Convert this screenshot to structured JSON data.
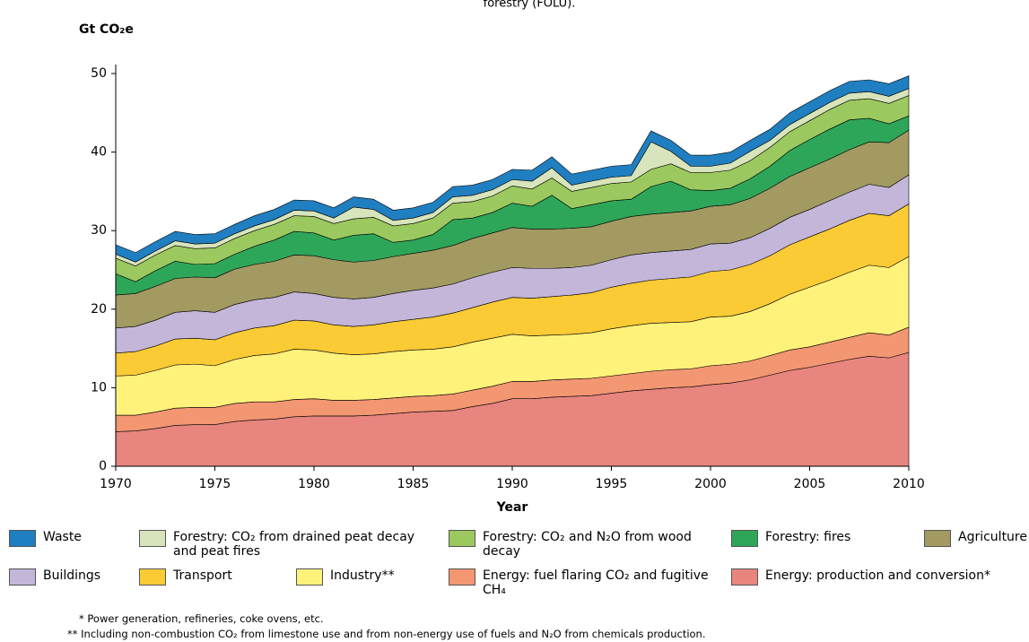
{
  "chart_data": {
    "type": "stacked_area",
    "title": "forestry (FOLU).",
    "ylabel": "Gt CO₂e",
    "xlabel": "Year",
    "x": [
      1970,
      1971,
      1972,
      1973,
      1974,
      1975,
      1976,
      1977,
      1978,
      1979,
      1980,
      1981,
      1982,
      1983,
      1984,
      1985,
      1986,
      1987,
      1988,
      1989,
      1990,
      1991,
      1992,
      1993,
      1994,
      1995,
      1996,
      1997,
      1998,
      1999,
      2000,
      2001,
      2002,
      2003,
      2004,
      2005,
      2006,
      2007,
      2008,
      2009,
      2010
    ],
    "xlim": [
      1970,
      2010
    ],
    "xticks": [
      1970,
      1975,
      1980,
      1985,
      1990,
      1995,
      2000,
      2005,
      2010
    ],
    "ylim": [
      0,
      55
    ],
    "yticks": [
      0,
      10,
      20,
      30,
      40,
      50
    ],
    "series": [
      {
        "name": "Energy: production and conversion*",
        "color": "#e8857f",
        "values": [
          4.4,
          4.5,
          4.8,
          5.2,
          5.3,
          5.3,
          5.7,
          5.9,
          6.0,
          6.3,
          6.4,
          6.4,
          6.4,
          6.5,
          6.7,
          6.9,
          7.0,
          7.1,
          7.6,
          8.0,
          8.6,
          8.6,
          8.8,
          8.9,
          9.0,
          9.3,
          9.6,
          9.8,
          10.0,
          10.1,
          10.4,
          10.6,
          11.0,
          11.6,
          12.2,
          12.6,
          13.1,
          13.6,
          14.0,
          13.8,
          14.5
        ]
      },
      {
        "name": "Energy: fuel flaring CO₂ and fugitive CH₄",
        "color": "#f39672",
        "values": [
          2.1,
          2.0,
          2.1,
          2.2,
          2.2,
          2.2,
          2.3,
          2.3,
          2.2,
          2.2,
          2.2,
          2.0,
          2.0,
          2.0,
          2.0,
          2.0,
          2.0,
          2.1,
          2.1,
          2.2,
          2.2,
          2.2,
          2.2,
          2.2,
          2.2,
          2.2,
          2.2,
          2.3,
          2.3,
          2.3,
          2.4,
          2.4,
          2.4,
          2.5,
          2.6,
          2.6,
          2.7,
          2.8,
          3.0,
          2.9,
          3.2
        ]
      },
      {
        "name": "Industry**",
        "color": "#fff27a",
        "values": [
          5.0,
          5.1,
          5.3,
          5.5,
          5.5,
          5.3,
          5.6,
          5.9,
          6.1,
          6.4,
          6.2,
          6.0,
          5.8,
          5.8,
          5.9,
          5.9,
          5.9,
          6.0,
          6.1,
          6.1,
          6.0,
          5.8,
          5.7,
          5.7,
          5.8,
          6.0,
          6.1,
          6.1,
          6.0,
          6.0,
          6.2,
          6.1,
          6.3,
          6.6,
          7.1,
          7.6,
          7.9,
          8.3,
          8.6,
          8.6,
          9.0
        ]
      },
      {
        "name": "Transport",
        "color": "#fbcb35",
        "values": [
          2.9,
          3.0,
          3.1,
          3.3,
          3.3,
          3.3,
          3.4,
          3.5,
          3.6,
          3.7,
          3.7,
          3.6,
          3.6,
          3.7,
          3.8,
          3.9,
          4.1,
          4.3,
          4.4,
          4.6,
          4.7,
          4.8,
          4.9,
          5.0,
          5.1,
          5.3,
          5.4,
          5.5,
          5.6,
          5.7,
          5.8,
          5.9,
          6.0,
          6.1,
          6.3,
          6.4,
          6.5,
          6.6,
          6.6,
          6.6,
          6.7
        ]
      },
      {
        "name": "Buildings",
        "color": "#c3b6d9",
        "values": [
          3.2,
          3.2,
          3.3,
          3.4,
          3.5,
          3.5,
          3.6,
          3.6,
          3.6,
          3.6,
          3.5,
          3.5,
          3.5,
          3.5,
          3.6,
          3.7,
          3.7,
          3.7,
          3.8,
          3.8,
          3.8,
          3.8,
          3.6,
          3.5,
          3.5,
          3.5,
          3.6,
          3.5,
          3.5,
          3.5,
          3.5,
          3.4,
          3.4,
          3.5,
          3.5,
          3.5,
          3.6,
          3.6,
          3.7,
          3.6,
          3.7
        ]
      },
      {
        "name": "Agriculture",
        "color": "#a39a62",
        "values": [
          4.2,
          4.2,
          4.3,
          4.3,
          4.3,
          4.4,
          4.5,
          4.5,
          4.6,
          4.7,
          4.8,
          4.8,
          4.7,
          4.7,
          4.7,
          4.7,
          4.8,
          4.9,
          5.0,
          5.0,
          5.1,
          5.0,
          5.0,
          5.0,
          4.9,
          4.9,
          4.9,
          4.9,
          4.9,
          4.9,
          4.8,
          4.9,
          5.0,
          5.1,
          5.2,
          5.3,
          5.3,
          5.4,
          5.4,
          5.7,
          5.7
        ]
      },
      {
        "name": "Forestry: fires",
        "color": "#2ea65a",
        "values": [
          2.7,
          1.5,
          2.0,
          2.2,
          1.6,
          1.8,
          1.9,
          2.3,
          2.7,
          3.0,
          2.9,
          2.5,
          3.4,
          3.4,
          1.8,
          1.7,
          2.0,
          3.3,
          2.6,
          2.6,
          3.1,
          2.9,
          4.3,
          2.5,
          2.8,
          2.6,
          2.2,
          3.5,
          4.0,
          2.7,
          2.0,
          2.1,
          2.5,
          2.8,
          3.3,
          3.6,
          3.8,
          3.8,
          3.0,
          2.4,
          1.8
        ]
      },
      {
        "name": "Forestry: CO₂ and N₂O from wood decay",
        "color": "#9bc95f",
        "values": [
          2.0,
          2.0,
          2.0,
          2.0,
          2.0,
          2.0,
          2.0,
          2.0,
          2.0,
          2.0,
          2.1,
          2.1,
          2.1,
          2.1,
          2.1,
          2.1,
          2.1,
          2.1,
          2.1,
          2.1,
          2.2,
          2.2,
          2.2,
          2.2,
          2.2,
          2.2,
          2.2,
          2.2,
          2.2,
          2.2,
          2.3,
          2.3,
          2.3,
          2.4,
          2.4,
          2.4,
          2.5,
          2.5,
          2.5,
          2.6,
          2.6
        ]
      },
      {
        "name": "Forestry: CO₂ from drained peat decay and peat fires",
        "color": "#d8e4bc",
        "values": [
          0.5,
          0.5,
          0.5,
          0.6,
          0.6,
          0.6,
          0.6,
          0.6,
          0.6,
          0.7,
          0.7,
          0.7,
          1.5,
          1.0,
          0.7,
          0.7,
          0.7,
          0.8,
          0.8,
          0.8,
          0.8,
          1.0,
          1.3,
          0.8,
          0.8,
          0.8,
          0.8,
          3.5,
          1.6,
          0.8,
          0.8,
          0.9,
          1.2,
          0.9,
          0.9,
          0.9,
          0.9,
          0.9,
          0.9,
          0.9,
          0.9
        ]
      },
      {
        "name": "Waste",
        "color": "#1f7fc0",
        "values": [
          1.2,
          1.2,
          1.2,
          1.2,
          1.2,
          1.2,
          1.2,
          1.3,
          1.3,
          1.3,
          1.3,
          1.3,
          1.3,
          1.3,
          1.3,
          1.3,
          1.3,
          1.3,
          1.3,
          1.3,
          1.3,
          1.4,
          1.4,
          1.4,
          1.4,
          1.4,
          1.4,
          1.4,
          1.4,
          1.4,
          1.4,
          1.4,
          1.4,
          1.4,
          1.5,
          1.5,
          1.5,
          1.5,
          1.5,
          1.6,
          1.6
        ]
      }
    ],
    "footnotes": [
      "*  Power generation, refineries, coke ovens, etc.",
      "**  Including non-combustion CO₂ from limestone use and from non-energy use of fuels and N₂O from chemicals production."
    ]
  }
}
